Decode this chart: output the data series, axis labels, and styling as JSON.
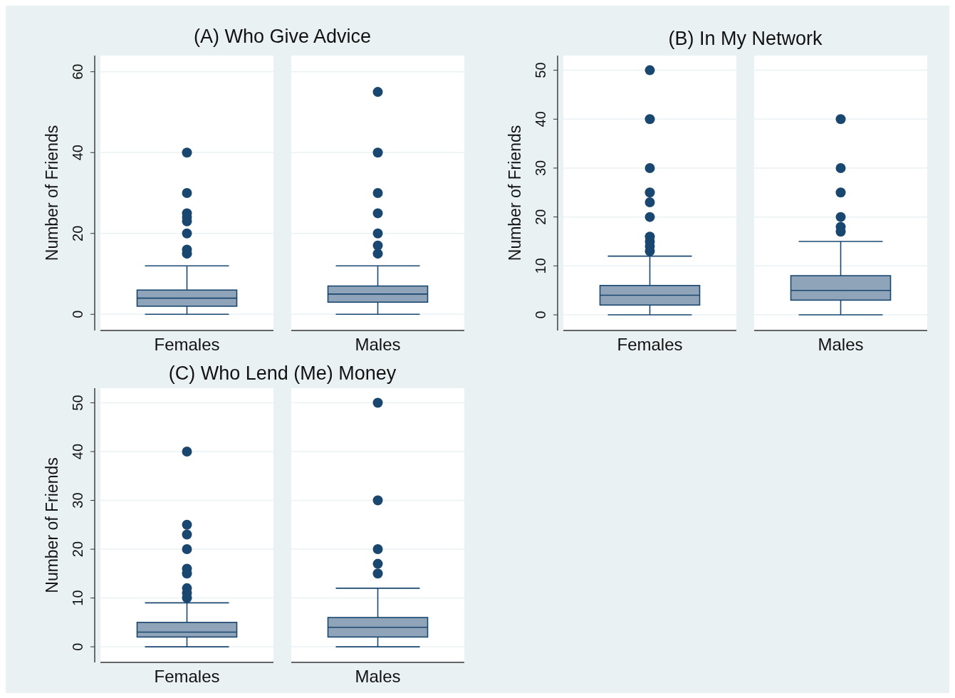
{
  "chart_data": [
    {
      "type": "box",
      "title": "(A) Who Give Advice",
      "ylabel": "Number of Friends",
      "categories": [
        "Females",
        "Males"
      ],
      "color": "#1a476f",
      "marker": "circle",
      "grid": "y",
      "ylim": [
        -4,
        64
      ],
      "yticks": [
        0,
        20,
        40,
        60
      ],
      "boxes": [
        {
          "low": 0,
          "q1": 2,
          "median": 4,
          "q3": 6,
          "high": 12,
          "outliers": [
            15,
            16,
            20,
            23,
            24,
            25,
            30,
            40
          ]
        },
        {
          "low": 0,
          "q1": 3,
          "median": 5,
          "q3": 7,
          "high": 12,
          "outliers": [
            15,
            17,
            20,
            25,
            30,
            40,
            55
          ]
        }
      ]
    },
    {
      "type": "box",
      "title": "(B) In My Network",
      "ylabel": "Number of Friends",
      "categories": [
        "Females",
        "Males"
      ],
      "color": "#1a476f",
      "marker": "circle",
      "grid": "y",
      "ylim": [
        -3.2,
        53
      ],
      "yticks": [
        0,
        10,
        20,
        30,
        40,
        50
      ],
      "boxes": [
        {
          "low": 0,
          "q1": 2,
          "median": 4,
          "q3": 6,
          "high": 12,
          "outliers": [
            13,
            14,
            15,
            16,
            20,
            23,
            25,
            30,
            40,
            50
          ]
        },
        {
          "low": 0,
          "q1": 3,
          "median": 5,
          "q3": 8,
          "high": 15,
          "outliers": [
            17,
            18,
            20,
            25,
            30,
            40
          ]
        }
      ]
    },
    {
      "type": "box",
      "title": "(C) Who Lend (Me) Money",
      "ylabel": "Number of Friends",
      "categories": [
        "Females",
        "Males"
      ],
      "color": "#1a476f",
      "marker": "circle",
      "grid": "y",
      "ylim": [
        -3.2,
        53
      ],
      "yticks": [
        0,
        10,
        20,
        30,
        40,
        50
      ],
      "boxes": [
        {
          "low": 0,
          "q1": 2,
          "median": 3,
          "q3": 5,
          "high": 9,
          "outliers": [
            10,
            11,
            12,
            15,
            16,
            20,
            23,
            25,
            40
          ]
        },
        {
          "low": 0,
          "q1": 2,
          "median": 4,
          "q3": 6,
          "high": 12,
          "outliers": [
            15,
            17,
            20,
            30,
            50
          ]
        }
      ]
    }
  ]
}
